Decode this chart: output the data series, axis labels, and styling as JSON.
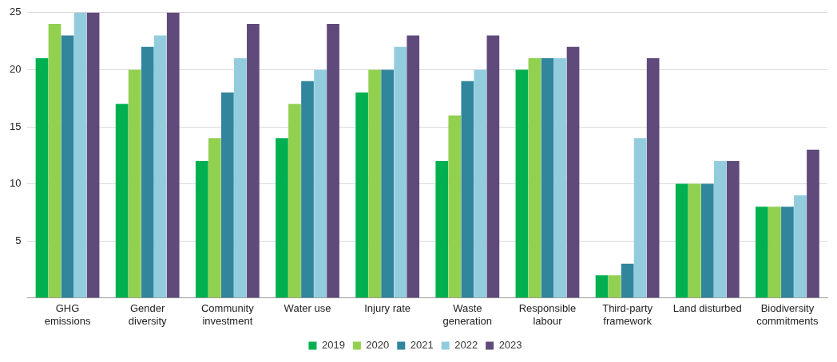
{
  "chart_data": {
    "type": "bar",
    "categories": [
      "GHG emissions",
      "Gender diversity",
      "Community investment",
      "Water use",
      "Injury rate",
      "Waste generation",
      "Responsible labour",
      "Third-party framework",
      "Land disturbed",
      "Biodiversity commitments"
    ],
    "series": [
      {
        "name": "2019",
        "color": "#00b050",
        "values": [
          21,
          17,
          12,
          14,
          18,
          12,
          20,
          2,
          10,
          8
        ]
      },
      {
        "name": "2020",
        "color": "#92d050",
        "values": [
          24,
          20,
          14,
          17,
          20,
          16,
          21,
          2,
          10,
          8
        ]
      },
      {
        "name": "2021",
        "color": "#31859c",
        "values": [
          23,
          22,
          18,
          19,
          20,
          19,
          21,
          3,
          10,
          8
        ]
      },
      {
        "name": "2022",
        "color": "#93cddd",
        "values": [
          25,
          23,
          21,
          20,
          22,
          20,
          21,
          14,
          12,
          9
        ]
      },
      {
        "name": "2023",
        "color": "#604a7b",
        "values": [
          25,
          25,
          24,
          24,
          23,
          23,
          22,
          21,
          12,
          13
        ]
      }
    ],
    "ylim": [
      0,
      25
    ],
    "yticks": [
      {
        "value": 0,
        "label": null
      },
      5,
      10,
      15,
      20,
      25
    ],
    "grid": "y",
    "legend": "bottom"
  }
}
